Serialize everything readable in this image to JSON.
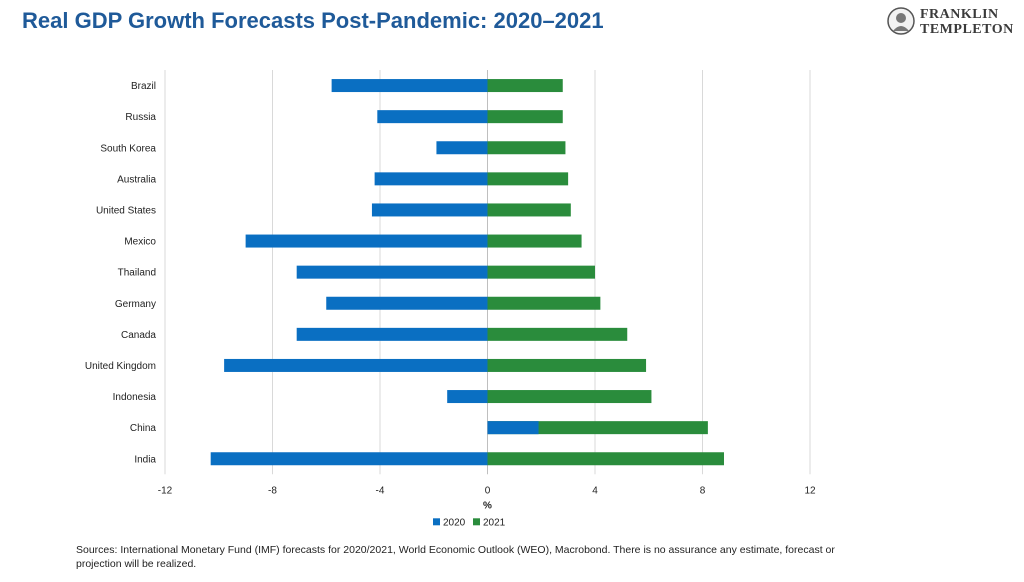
{
  "title": "Real GDP Growth Forecasts Post-Pandemic: 2020–2021",
  "logo": {
    "line1": "FRANKLIN",
    "line2": "TEMPLETON"
  },
  "source": "Sources: International Monetary Fund (IMF) forecasts for 2020/2021, World Economic Outlook (WEO), Macrobond. There is no assurance any estimate, forecast or projection will be realized.",
  "colors": {
    "s2020": "#0a6fc2",
    "s2021": "#2a8c3c",
    "grid": "#d9d9d9",
    "title": "#1f5a99"
  },
  "chart_data": {
    "type": "bar",
    "orientation": "horizontal",
    "xlabel": "%",
    "ylabel": "",
    "xlim": [
      -12,
      12
    ],
    "xticks": [
      -12,
      -8,
      -4,
      0,
      4,
      8,
      12
    ],
    "grid": true,
    "legend_position": "bottom",
    "categories": [
      "Brazil",
      "Russia",
      "South Korea",
      "Australia",
      "United States",
      "Mexico",
      "Thailand",
      "Germany",
      "Canada",
      "United Kingdom",
      "Indonesia",
      "China",
      "India"
    ],
    "series": [
      {
        "name": "2020",
        "values": [
          -5.8,
          -4.1,
          -1.9,
          -4.2,
          -4.3,
          -9.0,
          -7.1,
          -6.0,
          -7.1,
          -9.8,
          -1.5,
          1.9,
          -10.3
        ]
      },
      {
        "name": "2021",
        "values": [
          2.8,
          2.8,
          2.9,
          3.0,
          3.1,
          3.5,
          4.0,
          4.2,
          5.2,
          5.9,
          6.1,
          8.2,
          8.8
        ]
      }
    ]
  }
}
